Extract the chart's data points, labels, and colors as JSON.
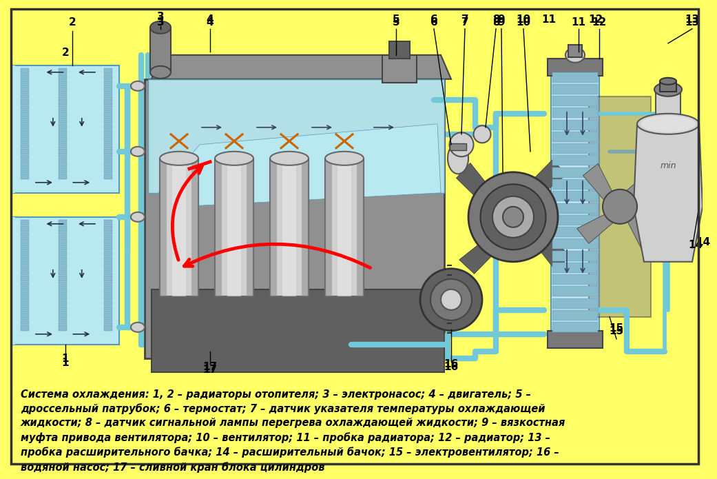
{
  "bg_color": "#FFFF66",
  "caption_text": "Система охлаждения: 1, 2 – радиаторы отопителя; 3 – электронасос; 4 – двигатель; 5 –\nдроссельный патрубок; 6 – термостат; 7 – датчик указателя температуры охлаждающей\nжидкости; 8 – датчик сигнальной лампы перегрева охлаждающей жидкости; 9 – вязкостная\nмуфта привода вентилятора; 10 – вентилятор; 11 – пробка радиатора; 12 – радиатор; 13 –\nпробка расширительного бачка; 14 – расширительный бачок; 15 – электровентилятор; 16 –\nводяной насос; 17 – сливной кран блока цилиндров",
  "caption_fontsize": 10.5,
  "pipe_color": "#70C8D8",
  "pipe_lw": 6,
  "coolant_fill": "#B8E8F0",
  "engine_gray": "#909090",
  "engine_dark": "#606060",
  "engine_light": "#B0B0B0",
  "engine_mid": "#787878",
  "metal_light": "#D0D0D0",
  "metal_dark": "#888888",
  "radiator_fill": "#C8E8F4",
  "border_lw": 2.5
}
